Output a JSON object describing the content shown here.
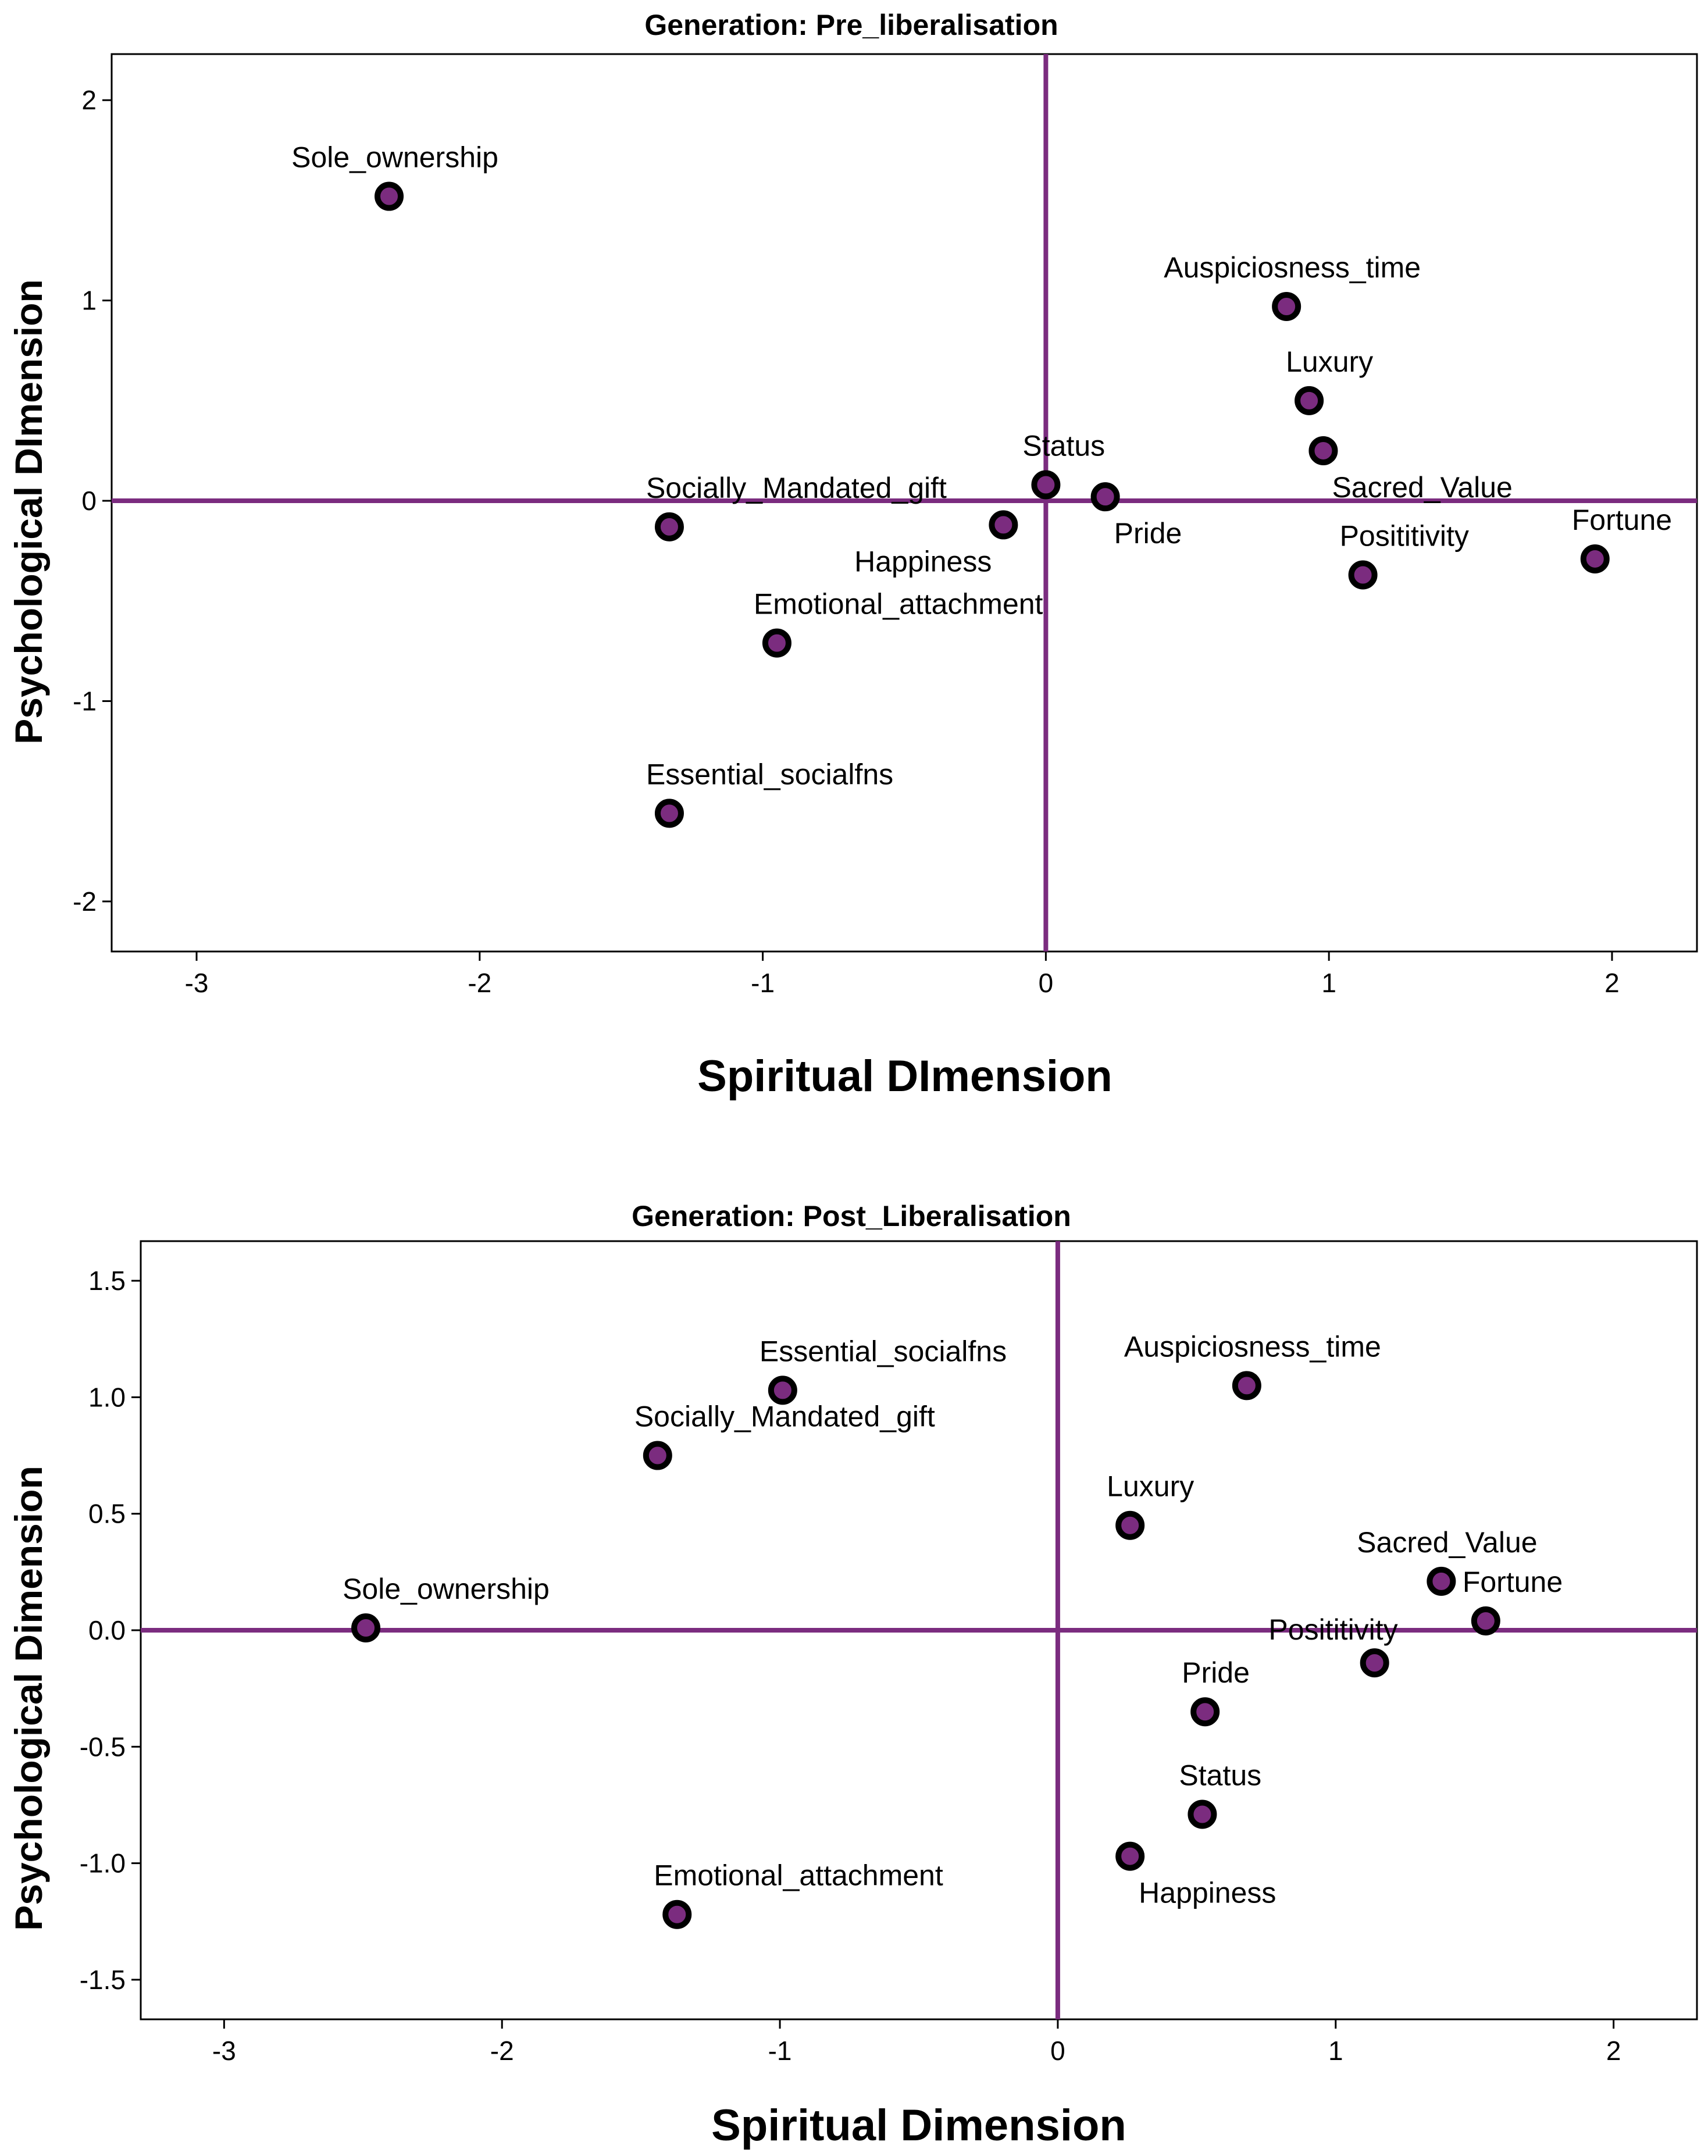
{
  "chart_data": [
    {
      "type": "scatter",
      "title": "Generation: Pre_liberalisation",
      "xlabel": "Spiritual DImension",
      "ylabel": "Psychological DImension",
      "xlim": [
        -3.3,
        2.3
      ],
      "ylim": [
        -2.25,
        2.23
      ],
      "xticks": [
        -3,
        -2,
        -1,
        0,
        1,
        2
      ],
      "yticks": [
        -2,
        -1,
        0,
        1,
        2
      ],
      "xtick_labels": [
        "-3",
        "-2",
        "-1",
        "0",
        "1",
        "2"
      ],
      "ytick_labels": [
        "-2",
        "-1",
        "0",
        "1",
        "2"
      ],
      "reference_lines": {
        "x": 0,
        "y": 0
      },
      "colors": {
        "marker_fill": "#7B2C7F",
        "marker_edge": "#000000",
        "reference_line": "#7B2C7F"
      },
      "points": [
        {
          "label": "Sole_ownership",
          "x": -2.32,
          "y": 1.52,
          "label_pos": "above"
        },
        {
          "label": "Auspiciosness_time",
          "x": 0.85,
          "y": 0.97,
          "label_pos": "above"
        },
        {
          "label": "Luxury",
          "x": 0.93,
          "y": 0.5,
          "label_pos": "above-right"
        },
        {
          "label": "Sacred_Value",
          "x": 0.98,
          "y": 0.25,
          "label_pos": "below-right"
        },
        {
          "label": "Status",
          "x": 0.0,
          "y": 0.08,
          "label_pos": "above-right"
        },
        {
          "label": "Pride",
          "x": 0.21,
          "y": 0.02,
          "label_pos": "below-right"
        },
        {
          "label": "Socially_Mandated_gift",
          "x": -1.33,
          "y": -0.13,
          "label_pos": "above-right"
        },
        {
          "label": "Happiness",
          "x": -0.15,
          "y": -0.12,
          "label_pos": "below-left"
        },
        {
          "label": "Fortune",
          "x": 1.94,
          "y": -0.29,
          "label_pos": "above-right"
        },
        {
          "label": "Posititivity",
          "x": 1.12,
          "y": -0.37,
          "label_pos": "above-right"
        },
        {
          "label": "Emotional_attachment",
          "x": -0.95,
          "y": -0.71,
          "label_pos": "above-right"
        },
        {
          "label": "Essential_socialfns",
          "x": -1.33,
          "y": -1.56,
          "label_pos": "above-right"
        }
      ]
    },
    {
      "type": "scatter",
      "title": "Generation: Post_Liberalisation",
      "xlabel": "Spiritual Dimension",
      "ylabel": "Psychological Dimension",
      "xlim": [
        -3.3,
        2.3
      ],
      "ylim": [
        -1.67,
        1.67
      ],
      "xticks": [
        -3,
        -2,
        -1,
        0,
        1,
        2
      ],
      "yticks": [
        -1.5,
        -1.0,
        -0.5,
        0.0,
        0.5,
        1.0,
        1.5
      ],
      "xtick_labels": [
        "-3",
        "-2",
        "-1",
        "0",
        "1",
        "2"
      ],
      "ytick_labels": [
        "-1.5",
        "-1.0",
        "-0.5",
        "0.0",
        "0.5",
        "1.0",
        "1.5"
      ],
      "reference_lines": {
        "x": 0,
        "y": 0
      },
      "colors": {
        "marker_fill": "#7B2C7F",
        "marker_edge": "#000000",
        "reference_line": "#7B2C7F"
      },
      "points": [
        {
          "label": "Essential_socialfns",
          "x": -0.99,
          "y": 1.03,
          "label_pos": "above-right"
        },
        {
          "label": "Auspiciosness_time",
          "x": 0.68,
          "y": 1.05,
          "label_pos": "above"
        },
        {
          "label": "Socially_Mandated_gift",
          "x": -1.44,
          "y": 0.75,
          "label_pos": "above-right"
        },
        {
          "label": "Luxury",
          "x": 0.26,
          "y": 0.45,
          "label_pos": "above-right"
        },
        {
          "label": "Sacred_Value",
          "x": 1.38,
          "y": 0.21,
          "label_pos": "above"
        },
        {
          "label": "Fortune",
          "x": 1.54,
          "y": 0.04,
          "label_pos": "above-right"
        },
        {
          "label": "Sole_ownership",
          "x": -2.49,
          "y": 0.01,
          "label_pos": "above-right"
        },
        {
          "label": "Posititivity",
          "x": 1.14,
          "y": -0.14,
          "label_pos": "above-left"
        },
        {
          "label": "Pride",
          "x": 0.53,
          "y": -0.35,
          "label_pos": "above-right"
        },
        {
          "label": "Status",
          "x": 0.52,
          "y": -0.79,
          "label_pos": "above-right"
        },
        {
          "label": "Happiness",
          "x": 0.26,
          "y": -0.97,
          "label_pos": "below-right"
        },
        {
          "label": "Emotional_attachment",
          "x": -1.37,
          "y": -1.22,
          "label_pos": "above-right"
        }
      ]
    }
  ]
}
